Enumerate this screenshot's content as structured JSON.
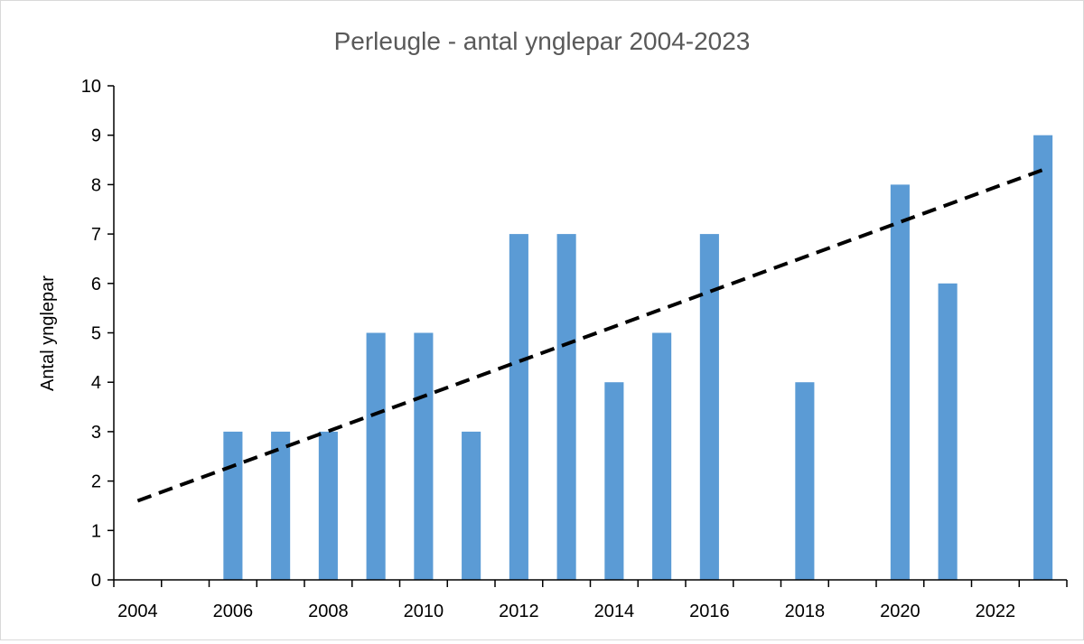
{
  "chart_data": {
    "type": "bar",
    "title": "Perleugle - antal ynglepar 2004-2023",
    "xlabel": "",
    "ylabel": "Antal ynglepar",
    "x": [
      2004,
      2005,
      2006,
      2007,
      2008,
      2009,
      2010,
      2011,
      2012,
      2013,
      2014,
      2015,
      2016,
      2017,
      2018,
      2019,
      2020,
      2021,
      2022,
      2023
    ],
    "values": [
      0,
      0,
      3,
      3,
      3,
      5,
      5,
      3,
      7,
      7,
      4,
      5,
      7,
      0,
      4,
      0,
      8,
      6,
      0,
      9
    ],
    "x_tick_labels": [
      "2004",
      "2006",
      "2008",
      "2010",
      "2012",
      "2014",
      "2016",
      "2018",
      "2020",
      "2022"
    ],
    "y_tick_labels": [
      "0",
      "1",
      "2",
      "3",
      "4",
      "5",
      "6",
      "7",
      "8",
      "9",
      "10"
    ],
    "ylim": [
      0,
      10
    ],
    "grid": false,
    "legend": "none",
    "bar_color": "#5b9bd5",
    "trendline": {
      "type": "linear",
      "style": "dashed",
      "color": "#000000",
      "start": {
        "x": 2004,
        "y": 1.6
      },
      "end": {
        "x": 2023,
        "y": 8.3
      }
    }
  }
}
